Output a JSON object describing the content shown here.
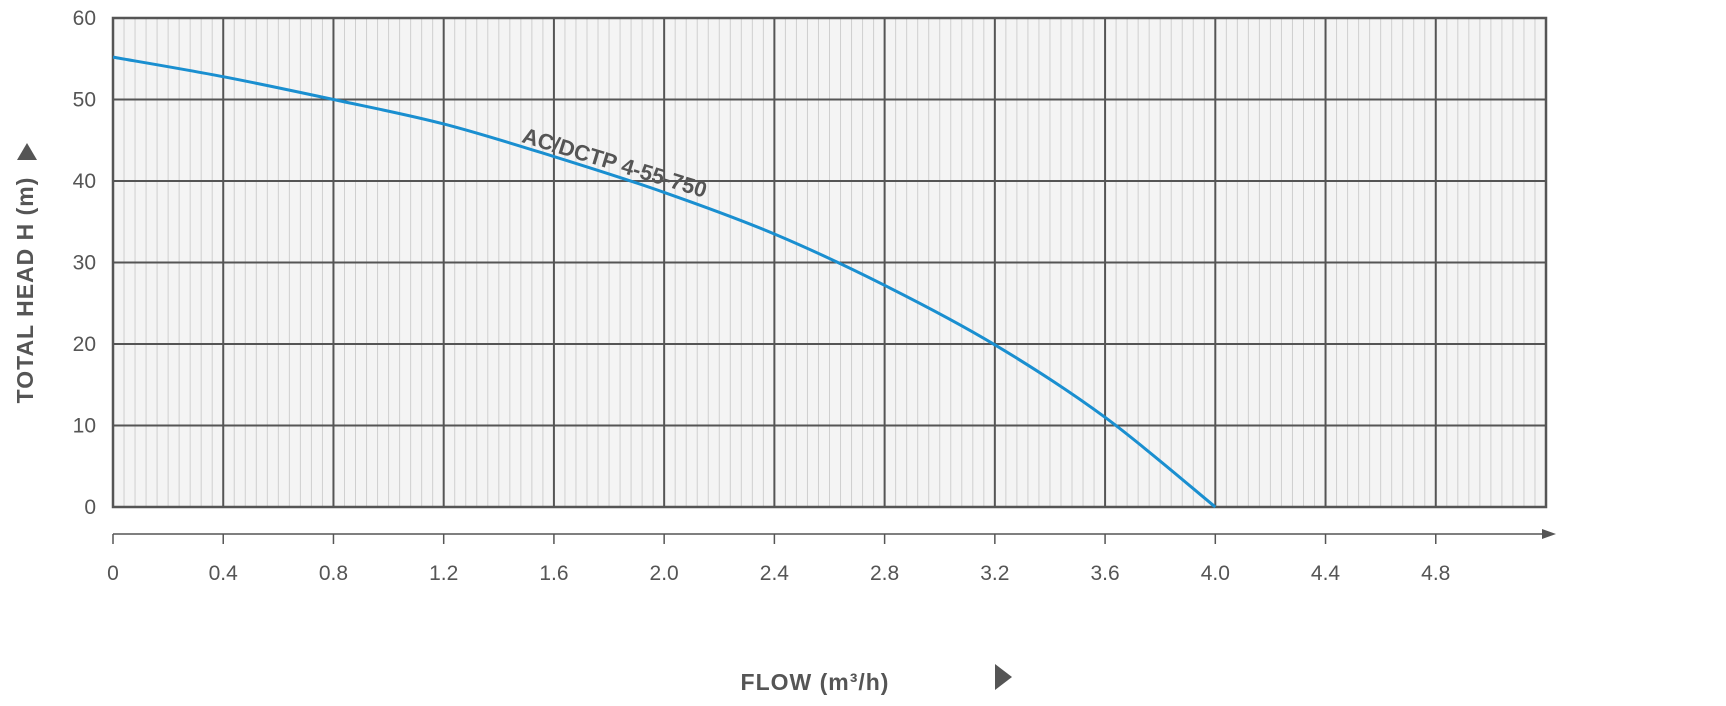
{
  "chart_data": {
    "type": "line",
    "xlabel": "FLOW (m³/h)",
    "ylabel": "TOTAL HEAD H (m)",
    "x_ticks": [
      "0",
      "0.4",
      "0.8",
      "1.2",
      "1.6",
      "2.0",
      "2.4",
      "2.8",
      "3.2",
      "3.6",
      "4.0",
      "4.4",
      "4.8"
    ],
    "y_ticks": [
      "0",
      "10",
      "20",
      "30",
      "40",
      "50",
      "60"
    ],
    "xlim": [
      0,
      5.2
    ],
    "ylim": [
      0,
      60
    ],
    "grid": true,
    "minor_grid": true,
    "series": [
      {
        "name": "AC/DCTP 4-55-750",
        "color": "#1a8fd0",
        "x": [
          0,
          0.4,
          0.8,
          1.2,
          1.6,
          2.0,
          2.4,
          2.8,
          3.2,
          3.6,
          4.0
        ],
        "y": [
          55.2,
          52.8,
          50.0,
          47.0,
          43.0,
          38.6,
          33.5,
          27.2,
          19.9,
          11.0,
          0
        ]
      }
    ]
  }
}
